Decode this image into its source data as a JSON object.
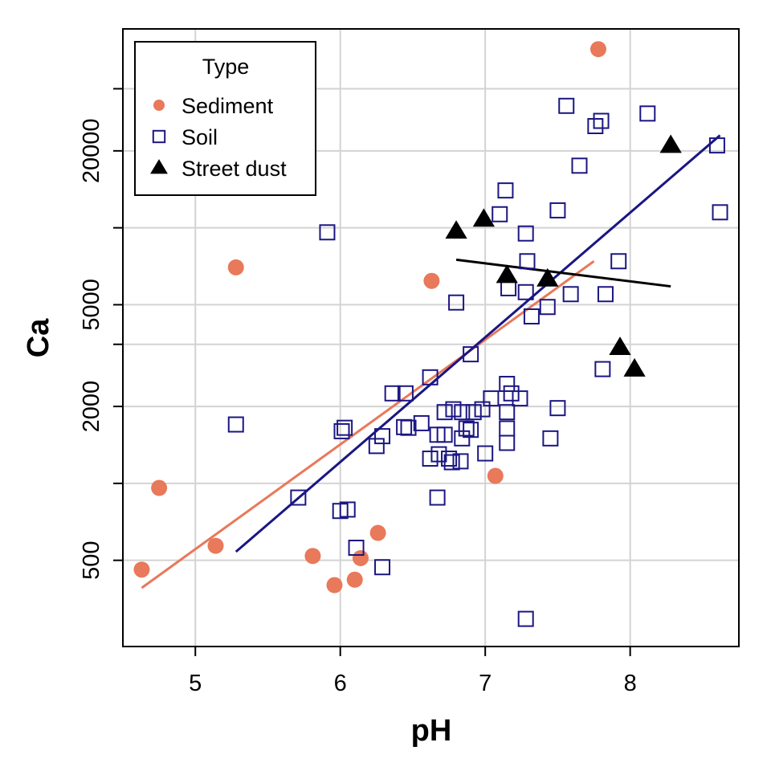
{
  "chart_data": {
    "type": "scatter",
    "title": "",
    "xlabel": "pH",
    "ylabel": "Ca",
    "xlim": [
      4.5,
      8.75
    ],
    "ylim": [
      230,
      60000
    ],
    "yscale": "log",
    "x_ticks": [
      5,
      6,
      7,
      8
    ],
    "y_ticks": [
      500,
      2000,
      5000,
      20000
    ],
    "y_tick_labels": [
      "500",
      "2000",
      "5000",
      "20000"
    ],
    "y_minor_ticks": [
      1000,
      3500,
      10000,
      35000
    ],
    "grid": true,
    "legend": {
      "title": "Type",
      "position": "top-left",
      "entries": [
        "Sediment",
        "Soil",
        "Street dust"
      ]
    },
    "series": [
      {
        "name": "Sediment",
        "marker": "circle-filled",
        "color": "#E8795A",
        "points": [
          [
            7.78,
            50000
          ],
          [
            5.28,
            7000
          ],
          [
            6.63,
            6200
          ],
          [
            4.75,
            960
          ],
          [
            5.14,
            570
          ],
          [
            4.63,
            460
          ],
          [
            5.81,
            520
          ],
          [
            5.96,
            400
          ],
          [
            6.1,
            420
          ],
          [
            6.14,
            510
          ],
          [
            6.26,
            640
          ],
          [
            7.07,
            1070
          ]
        ],
        "fit_line": [
          [
            4.63,
            390
          ],
          [
            7.75,
            7400
          ]
        ]
      },
      {
        "name": "Soil",
        "marker": "square-open",
        "color": "#1B1682",
        "points": [
          [
            7.56,
            30000
          ],
          [
            7.8,
            26200
          ],
          [
            7.76,
            25000
          ],
          [
            8.12,
            28000
          ],
          [
            8.6,
            21000
          ],
          [
            8.62,
            11500
          ],
          [
            7.65,
            17500
          ],
          [
            7.14,
            14000
          ],
          [
            7.1,
            11300
          ],
          [
            7.5,
            11700
          ],
          [
            7.28,
            9500
          ],
          [
            7.29,
            7400
          ],
          [
            7.92,
            7400
          ],
          [
            5.91,
            9600
          ],
          [
            7.16,
            5800
          ],
          [
            7.28,
            5600
          ],
          [
            7.59,
            5500
          ],
          [
            7.83,
            5500
          ],
          [
            6.8,
            5100
          ],
          [
            7.43,
            4900
          ],
          [
            7.32,
            4500
          ],
          [
            6.9,
            3200
          ],
          [
            7.81,
            2800
          ],
          [
            6.62,
            2600
          ],
          [
            7.15,
            2450
          ],
          [
            7.18,
            2250
          ],
          [
            7.24,
            2150
          ],
          [
            7.04,
            2150
          ],
          [
            6.36,
            2250
          ],
          [
            6.45,
            2250
          ],
          [
            7.15,
            1900
          ],
          [
            6.72,
            1900
          ],
          [
            6.78,
            1950
          ],
          [
            6.84,
            1900
          ],
          [
            6.92,
            1900
          ],
          [
            6.98,
            1950
          ],
          [
            7.5,
            1970
          ],
          [
            5.28,
            1700
          ],
          [
            6.01,
            1600
          ],
          [
            6.03,
            1650
          ],
          [
            6.56,
            1720
          ],
          [
            6.44,
            1660
          ],
          [
            6.47,
            1650
          ],
          [
            6.29,
            1530
          ],
          [
            6.25,
            1400
          ],
          [
            6.67,
            1550
          ],
          [
            6.72,
            1550
          ],
          [
            6.84,
            1500
          ],
          [
            6.87,
            1640
          ],
          [
            6.9,
            1620
          ],
          [
            7.15,
            1640
          ],
          [
            7.15,
            1440
          ],
          [
            7.45,
            1500
          ],
          [
            6.62,
            1250
          ],
          [
            6.68,
            1300
          ],
          [
            6.75,
            1250
          ],
          [
            6.77,
            1210
          ],
          [
            6.83,
            1220
          ],
          [
            7.0,
            1310
          ],
          [
            5.71,
            880
          ],
          [
            6.0,
            780
          ],
          [
            6.05,
            790
          ],
          [
            6.67,
            880
          ],
          [
            6.11,
            560
          ],
          [
            6.29,
            470
          ],
          [
            7.28,
            295
          ]
        ],
        "fit_line": [
          [
            5.28,
            540
          ],
          [
            8.62,
            23000
          ]
        ]
      },
      {
        "name": "Street dust",
        "marker": "triangle-filled",
        "color": "#000000",
        "points": [
          [
            8.28,
            21000
          ],
          [
            6.8,
            9700
          ],
          [
            6.99,
            10800
          ],
          [
            7.15,
            6500
          ],
          [
            7.43,
            6300
          ],
          [
            7.93,
            3400
          ],
          [
            8.03,
            2800
          ]
        ],
        "fit_line": [
          [
            6.8,
            7500
          ],
          [
            8.28,
            5900
          ]
        ]
      }
    ]
  }
}
